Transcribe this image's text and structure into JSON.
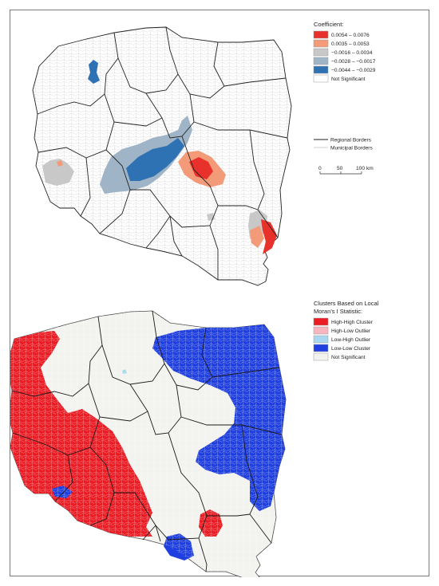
{
  "top_map": {
    "legend_title": "Coefficient:",
    "classes": [
      {
        "label": "0.0054 – 0.0076",
        "color": "#e8312a"
      },
      {
        "label": "0.0035 – 0.0053",
        "color": "#f39b78"
      },
      {
        "label": "−0.0016 – 0.0034",
        "color": "#c8c8c8"
      },
      {
        "label": "−0.0028 – −0.0017",
        "color": "#9fb4c6"
      },
      {
        "label": "−0.0044 – −0.0029",
        "color": "#2f72b3"
      },
      {
        "label": "Not Significant",
        "color": "#ffffff"
      }
    ],
    "border_legend": {
      "regional": "Regional Borders",
      "municipal": "Municipal Borders"
    },
    "scale_bar": {
      "ticks": [
        "0",
        "50",
        "100"
      ],
      "unit": "km"
    }
  },
  "bottom_map": {
    "legend_title_line1": "Clusters Based on Local",
    "legend_title_line2": "Moran’s I Statistic:",
    "classes": [
      {
        "label": "High-High Cluster",
        "color": "#ec1c24"
      },
      {
        "label": "High-Low Outlier",
        "color": "#f7b6bf"
      },
      {
        "label": "Low-High Outlier",
        "color": "#a8d8f0"
      },
      {
        "label": "Low-Low Cluster",
        "color": "#1f3fe0"
      },
      {
        "label": "Not Significant",
        "color": "#f2f2ee"
      }
    ]
  }
}
